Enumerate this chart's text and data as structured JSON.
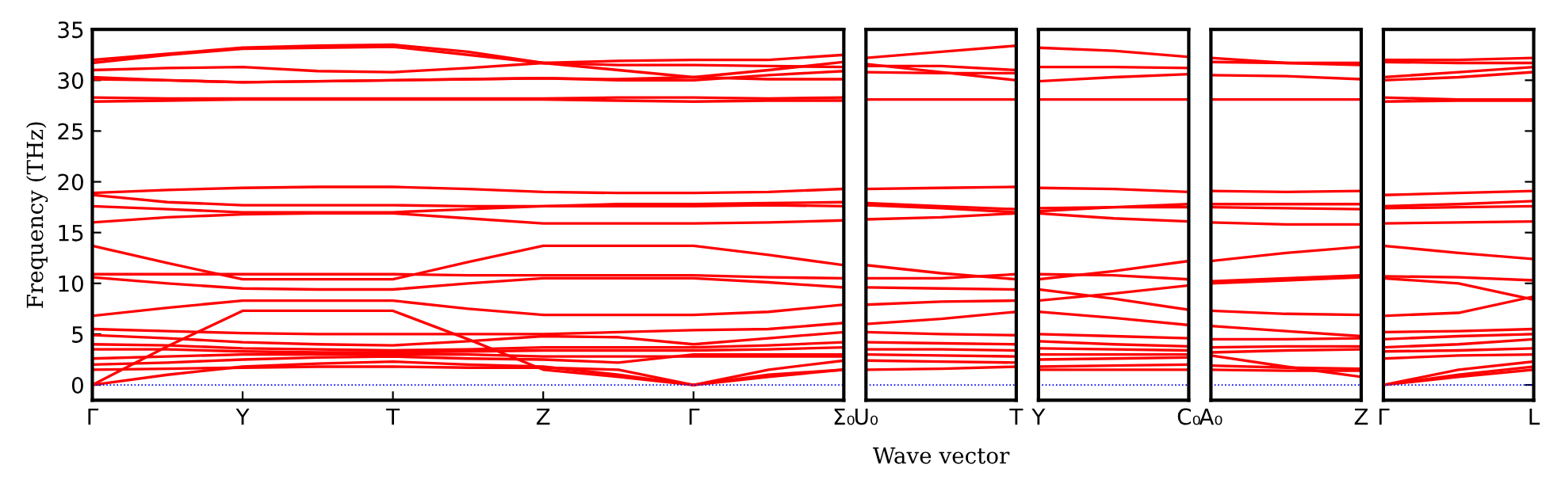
{
  "chart_data": [
    {
      "type": "line",
      "ylabel": "Frequency (THz)",
      "color": "#ff0000",
      "categories": [
        "Γ",
        null,
        "Y",
        null,
        "T",
        null,
        "Z",
        null,
        "Γ",
        null,
        "Σ₀"
      ],
      "ylim": [
        -1.5,
        35
      ],
      "yticks": [
        0,
        5,
        10,
        15,
        20,
        25,
        30,
        35
      ],
      "ref_lines": [
        {
          "axis": "y",
          "value": 0,
          "color": "#0000ff",
          "line_style": "dotted"
        }
      ],
      "series": [
        {
          "values": [
            32.0,
            32.6,
            33.2,
            33.4,
            33.5,
            32.8,
            31.7,
            31.9,
            32.0,
            32.0,
            32.5
          ]
        },
        {
          "values": [
            31.7,
            32.5,
            33.1,
            33.2,
            33.3,
            32.5,
            31.7,
            31.0,
            30.3,
            31.0,
            31.8
          ]
        },
        {
          "values": [
            31.0,
            31.2,
            31.3,
            30.9,
            30.8,
            31.2,
            31.7,
            31.5,
            31.5,
            31.4,
            31.3
          ]
        },
        {
          "values": [
            30.3,
            30.0,
            29.8,
            29.9,
            30.0,
            30.1,
            30.2,
            30.0,
            30.0,
            30.5,
            30.9
          ]
        },
        {
          "values": [
            30.1,
            30.0,
            29.8,
            29.9,
            30.0,
            30.1,
            30.2,
            30.1,
            30.3,
            30.1,
            30.1
          ]
        },
        {
          "values": [
            28.3,
            28.2,
            28.2,
            28.2,
            28.2,
            28.2,
            28.2,
            28.3,
            28.3,
            28.2,
            28.3
          ]
        },
        {
          "values": [
            27.9,
            28.0,
            28.1,
            28.1,
            28.1,
            28.1,
            28.1,
            28.0,
            27.9,
            28.0,
            28.0
          ]
        },
        {
          "values": [
            18.9,
            19.2,
            19.4,
            19.5,
            19.5,
            19.3,
            19.0,
            18.9,
            18.9,
            19.0,
            19.3
          ]
        },
        {
          "values": [
            18.7,
            18.0,
            17.7,
            17.7,
            17.7,
            17.6,
            17.6,
            17.8,
            17.8,
            17.9,
            18.0
          ]
        },
        {
          "values": [
            17.6,
            17.3,
            17.0,
            17.0,
            17.0,
            17.3,
            17.6,
            17.6,
            17.6,
            17.7,
            17.6
          ]
        },
        {
          "values": [
            16.0,
            16.5,
            16.8,
            16.9,
            16.9,
            16.4,
            15.9,
            15.9,
            15.9,
            16.0,
            16.2
          ]
        },
        {
          "values": [
            13.7,
            12.0,
            10.4,
            10.4,
            10.4,
            12.1,
            13.7,
            13.7,
            13.7,
            12.8,
            11.8
          ]
        },
        {
          "values": [
            10.9,
            10.9,
            10.9,
            10.9,
            10.9,
            10.8,
            10.8,
            10.8,
            10.8,
            10.6,
            10.5
          ]
        },
        {
          "values": [
            10.6,
            10.0,
            9.5,
            9.4,
            9.4,
            10.0,
            10.5,
            10.5,
            10.5,
            10.1,
            9.6
          ]
        },
        {
          "values": [
            6.8,
            7.6,
            8.3,
            8.3,
            8.3,
            7.5,
            6.9,
            6.9,
            6.9,
            7.2,
            7.9
          ]
        },
        {
          "values": [
            0.0,
            3.8,
            7.3,
            7.3,
            7.3,
            4.5,
            1.5,
            0.8,
            0.0,
            1.0,
            1.5
          ]
        },
        {
          "values": [
            5.5,
            5.3,
            5.1,
            5.0,
            5.0,
            5.0,
            5.0,
            5.2,
            5.4,
            5.5,
            6.1
          ]
        },
        {
          "values": [
            4.9,
            4.6,
            4.2,
            4.0,
            3.9,
            4.3,
            4.8,
            4.7,
            4.0,
            4.6,
            5.2
          ]
        },
        {
          "values": [
            4.0,
            3.9,
            3.6,
            3.5,
            3.4,
            3.5,
            3.7,
            3.7,
            3.7,
            3.9,
            4.2
          ]
        },
        {
          "values": [
            3.5,
            3.5,
            3.3,
            3.2,
            3.2,
            3.3,
            3.4,
            3.4,
            3.4,
            3.5,
            3.7
          ]
        },
        {
          "values": [
            0.0,
            1.0,
            1.8,
            2.1,
            2.3,
            2.0,
            1.8,
            1.0,
            0.0,
            1.5,
            2.4
          ]
        },
        {
          "values": [
            2.0,
            2.2,
            2.5,
            2.7,
            2.8,
            2.6,
            2.5,
            2.2,
            3.0,
            3.0,
            3.0
          ]
        },
        {
          "values": [
            1.5,
            1.6,
            1.7,
            1.8,
            1.8,
            1.7,
            1.7,
            1.5,
            0.0,
            0.8,
            1.5
          ]
        },
        {
          "values": [
            2.6,
            2.8,
            3.0,
            3.0,
            3.0,
            3.0,
            2.8,
            2.8,
            2.8,
            2.8,
            2.8
          ]
        }
      ]
    },
    {
      "type": "line",
      "xlabel": "Wave vector",
      "color": "#ff0000",
      "tick_labels": "x",
      "categories": [
        "U₀",
        null,
        "T"
      ],
      "ylim": [
        -1.5,
        35
      ],
      "yticks": [
        0,
        5,
        10,
        15,
        20,
        25,
        30,
        35
      ],
      "ref_lines": [
        {
          "axis": "y",
          "value": 0,
          "color": "#0000ff",
          "line_style": "dotted"
        }
      ],
      "series": [
        {
          "values": [
            32.2,
            32.8,
            33.4
          ]
        },
        {
          "values": [
            31.6,
            30.8,
            30.0
          ]
        },
        {
          "values": [
            31.4,
            31.4,
            31.0
          ]
        },
        {
          "values": [
            30.8,
            30.7,
            30.7
          ]
        },
        {
          "values": [
            28.1,
            28.1,
            28.1
          ]
        },
        {
          "values": [
            19.3,
            19.4,
            19.5
          ]
        },
        {
          "values": [
            17.9,
            17.6,
            17.3
          ]
        },
        {
          "values": [
            17.7,
            17.4,
            17.0
          ]
        },
        {
          "values": [
            16.3,
            16.5,
            16.9
          ]
        },
        {
          "values": [
            11.8,
            11.0,
            10.4
          ]
        },
        {
          "values": [
            10.5,
            10.5,
            10.9
          ]
        },
        {
          "values": [
            9.6,
            9.5,
            9.4
          ]
        },
        {
          "values": [
            7.9,
            8.2,
            8.3
          ]
        },
        {
          "values": [
            6.0,
            6.5,
            7.2
          ]
        },
        {
          "values": [
            5.2,
            5.0,
            4.9
          ]
        },
        {
          "values": [
            4.2,
            4.1,
            4.0
          ]
        },
        {
          "values": [
            3.5,
            3.5,
            3.4
          ]
        },
        {
          "values": [
            3.0,
            2.9,
            2.8
          ]
        },
        {
          "values": [
            2.4,
            2.3,
            2.2
          ]
        },
        {
          "values": [
            1.5,
            1.6,
            1.8
          ]
        }
      ]
    },
    {
      "type": "line",
      "color": "#ff0000",
      "tick_labels": "x",
      "categories": [
        "Y",
        null,
        "C₀"
      ],
      "ylim": [
        -1.5,
        35
      ],
      "yticks": [
        0,
        5,
        10,
        15,
        20,
        25,
        30,
        35
      ],
      "ref_lines": [
        {
          "axis": "y",
          "value": 0,
          "color": "#0000ff",
          "line_style": "dotted"
        }
      ],
      "series": [
        {
          "values": [
            33.2,
            32.9,
            32.3
          ]
        },
        {
          "values": [
            31.3,
            31.3,
            31.2
          ]
        },
        {
          "values": [
            29.9,
            30.3,
            30.6
          ]
        },
        {
          "values": [
            28.1,
            28.1,
            28.1
          ]
        },
        {
          "values": [
            19.4,
            19.3,
            19.0
          ]
        },
        {
          "values": [
            17.1,
            17.5,
            17.8
          ]
        },
        {
          "values": [
            17.4,
            17.5,
            17.5
          ]
        },
        {
          "values": [
            16.9,
            16.4,
            16.1
          ]
        },
        {
          "values": [
            10.4,
            11.2,
            12.2
          ]
        },
        {
          "values": [
            10.9,
            10.8,
            10.4
          ]
        },
        {
          "values": [
            8.3,
            9.0,
            9.8
          ]
        },
        {
          "values": [
            9.4,
            8.5,
            7.4
          ]
        },
        {
          "values": [
            7.2,
            6.6,
            5.9
          ]
        },
        {
          "values": [
            5.0,
            4.8,
            4.6
          ]
        },
        {
          "values": [
            4.3,
            4.0,
            3.8
          ]
        },
        {
          "values": [
            3.6,
            3.5,
            3.4
          ]
        },
        {
          "values": [
            3.0,
            3.0,
            3.0
          ]
        },
        {
          "values": [
            2.5,
            2.6,
            2.7
          ]
        },
        {
          "values": [
            1.8,
            1.9,
            2.0
          ]
        },
        {
          "values": [
            1.5,
            1.5,
            1.5
          ]
        }
      ]
    },
    {
      "type": "line",
      "color": "#ff0000",
      "tick_labels": "x",
      "categories": [
        "A₀",
        null,
        "Z"
      ],
      "ylim": [
        -1.5,
        35
      ],
      "yticks": [
        0,
        5,
        10,
        15,
        20,
        25,
        30,
        35
      ],
      "ref_lines": [
        {
          "axis": "y",
          "value": 0,
          "color": "#0000ff",
          "line_style": "dotted"
        }
      ],
      "series": [
        {
          "values": [
            32.2,
            31.7,
            31.7
          ]
        },
        {
          "values": [
            31.8,
            31.7,
            31.5
          ]
        },
        {
          "values": [
            30.5,
            30.4,
            30.1
          ]
        },
        {
          "values": [
            28.1,
            28.1,
            28.1
          ]
        },
        {
          "values": [
            19.1,
            19.0,
            19.1
          ]
        },
        {
          "values": [
            17.8,
            17.8,
            17.8
          ]
        },
        {
          "values": [
            17.5,
            17.4,
            17.3
          ]
        },
        {
          "values": [
            16.0,
            15.8,
            15.8
          ]
        },
        {
          "values": [
            12.2,
            13.0,
            13.6
          ]
        },
        {
          "values": [
            10.2,
            10.5,
            10.8
          ]
        },
        {
          "values": [
            10.0,
            10.3,
            10.6
          ]
        },
        {
          "values": [
            7.3,
            7.0,
            6.9
          ]
        },
        {
          "values": [
            5.8,
            5.3,
            4.8
          ]
        },
        {
          "values": [
            4.5,
            4.5,
            4.6
          ]
        },
        {
          "values": [
            3.7,
            3.8,
            3.8
          ]
        },
        {
          "values": [
            3.2,
            3.4,
            3.5
          ]
        },
        {
          "values": [
            2.9,
            1.8,
            0.8
          ]
        },
        {
          "values": [
            1.9,
            1.7,
            1.6
          ]
        },
        {
          "values": [
            1.5,
            1.4,
            1.4
          ]
        }
      ]
    },
    {
      "type": "line",
      "color": "#ff0000",
      "tick_labels": "x",
      "categories": [
        "Γ",
        null,
        "L"
      ],
      "ylim": [
        -1.5,
        35
      ],
      "yticks": [
        0,
        5,
        10,
        15,
        20,
        25,
        30,
        35
      ],
      "ref_lines": [
        {
          "axis": "y",
          "value": 0,
          "color": "#0000ff",
          "line_style": "dotted"
        }
      ],
      "series": [
        {
          "values": [
            32.0,
            32.0,
            32.2
          ]
        },
        {
          "values": [
            31.8,
            31.7,
            31.7
          ]
        },
        {
          "values": [
            30.3,
            30.8,
            31.3
          ]
        },
        {
          "values": [
            30.0,
            30.3,
            30.8
          ]
        },
        {
          "values": [
            28.3,
            28.1,
            28.1
          ]
        },
        {
          "values": [
            27.9,
            28.0,
            28.0
          ]
        },
        {
          "values": [
            18.7,
            18.9,
            19.1
          ]
        },
        {
          "values": [
            17.6,
            17.8,
            18.1
          ]
        },
        {
          "values": [
            17.4,
            17.5,
            17.6
          ]
        },
        {
          "values": [
            15.9,
            16.0,
            16.1
          ]
        },
        {
          "values": [
            13.7,
            13.0,
            12.4
          ]
        },
        {
          "values": [
            10.7,
            10.6,
            10.3
          ]
        },
        {
          "values": [
            10.5,
            10.0,
            8.4
          ]
        },
        {
          "values": [
            6.8,
            7.1,
            8.7
          ]
        },
        {
          "values": [
            5.2,
            5.3,
            5.5
          ]
        },
        {
          "values": [
            4.5,
            4.8,
            5.0
          ]
        },
        {
          "values": [
            3.7,
            4.0,
            4.5
          ]
        },
        {
          "values": [
            3.3,
            3.4,
            3.6
          ]
        },
        {
          "values": [
            2.6,
            2.9,
            3.0
          ]
        },
        {
          "values": [
            0.0,
            1.5,
            2.3
          ]
        },
        {
          "values": [
            0.0,
            1.0,
            1.8
          ]
        },
        {
          "values": [
            0.0,
            0.8,
            1.5
          ]
        }
      ]
    }
  ]
}
